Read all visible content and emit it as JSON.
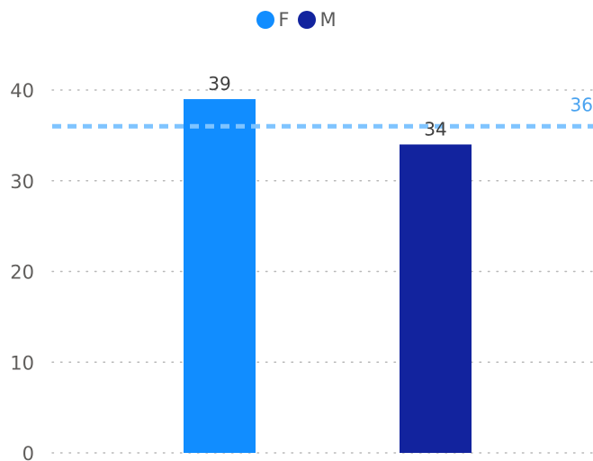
{
  "chart_data": {
    "type": "bar",
    "categories": [
      "F",
      "M"
    ],
    "values": [
      39,
      34
    ],
    "data_labels": [
      "39",
      "34"
    ],
    "colors": [
      "#118DFF",
      "#12239E"
    ],
    "legend": [
      {
        "name": "F",
        "color": "#118DFF"
      },
      {
        "name": "M",
        "color": "#12239E"
      }
    ],
    "legend_position": "top-center",
    "ylim": [
      0,
      40
    ],
    "yticks": [
      0,
      10,
      20,
      30,
      40
    ],
    "ytick_labels": [
      "0",
      "10",
      "20",
      "30",
      "40"
    ],
    "grid": "dotted horizontal",
    "reference_line": {
      "value": 36,
      "label": "36",
      "color": "#7FC4FF",
      "style": "dashed"
    },
    "xlabel": "",
    "ylabel": "",
    "title": ""
  }
}
